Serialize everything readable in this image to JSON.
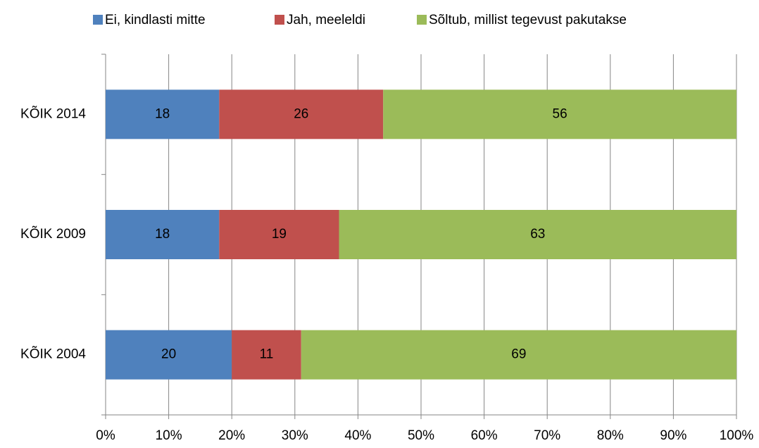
{
  "chart_data": {
    "type": "stacked-bar-horizontal",
    "categories": [
      "KÕIK 2014",
      "KÕIK 2009",
      "KÕIK 2004"
    ],
    "series": [
      {
        "name": "Ei, kindlasti mitte",
        "color": "#4f81bd",
        "values": [
          18,
          18,
          20
        ]
      },
      {
        "name": "Jah, meeleldi",
        "color": "#c0504d",
        "values": [
          26,
          19,
          11
        ]
      },
      {
        "name": "Sõltub, millist tegevust pakutakse",
        "color": "#9bbb59",
        "values": [
          56,
          63,
          69
        ]
      }
    ],
    "xlim": [
      0,
      100
    ],
    "xticks": [
      {
        "value": 0,
        "label": "0%"
      },
      {
        "value": 10,
        "label": "10%"
      },
      {
        "value": 20,
        "label": "20%"
      },
      {
        "value": 30,
        "label": "30%"
      },
      {
        "value": 40,
        "label": "40%"
      },
      {
        "value": 50,
        "label": "50%"
      },
      {
        "value": 60,
        "label": "60%"
      },
      {
        "value": 70,
        "label": "70%"
      },
      {
        "value": 80,
        "label": "80%"
      },
      {
        "value": 90,
        "label": "90%"
      },
      {
        "value": 100,
        "label": "100%"
      }
    ],
    "grid": true,
    "legend": "top"
  }
}
